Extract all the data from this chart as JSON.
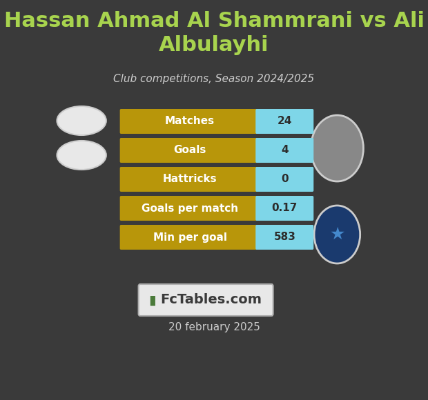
{
  "title": "Hassan Ahmad Al Shammrani vs Ali\nAlbulayhi",
  "subtitle": "Club competitions, Season 2024/2025",
  "background_color": "#3a3a3a",
  "title_color": "#a8d44e",
  "subtitle_color": "#cccccc",
  "date_text": "20 february 2025",
  "date_color": "#cccccc",
  "watermark_text": "FcTables.com",
  "stats": [
    {
      "label": "Matches",
      "value": "24"
    },
    {
      "label": "Goals",
      "value": "4"
    },
    {
      "label": "Hattricks",
      "value": "0"
    },
    {
      "label": "Goals per match",
      "value": "0.17"
    },
    {
      "label": "Min per goal",
      "value": "583"
    }
  ],
  "bar_gold_color": "#b8960a",
  "bar_cyan_color": "#7ed6e8",
  "bar_label_color": "#ffffff",
  "bar_value_color": "#2c2c2c",
  "ellipse_color": "#e8e8e8",
  "ellipse_outline": "#cccccc",
  "watermark_bg": "#e8e8e8",
  "watermark_border": "#b0b0b0",
  "watermark_text_color": "#3a3a3a",
  "watermark_icon_color": "#4a7a3a"
}
